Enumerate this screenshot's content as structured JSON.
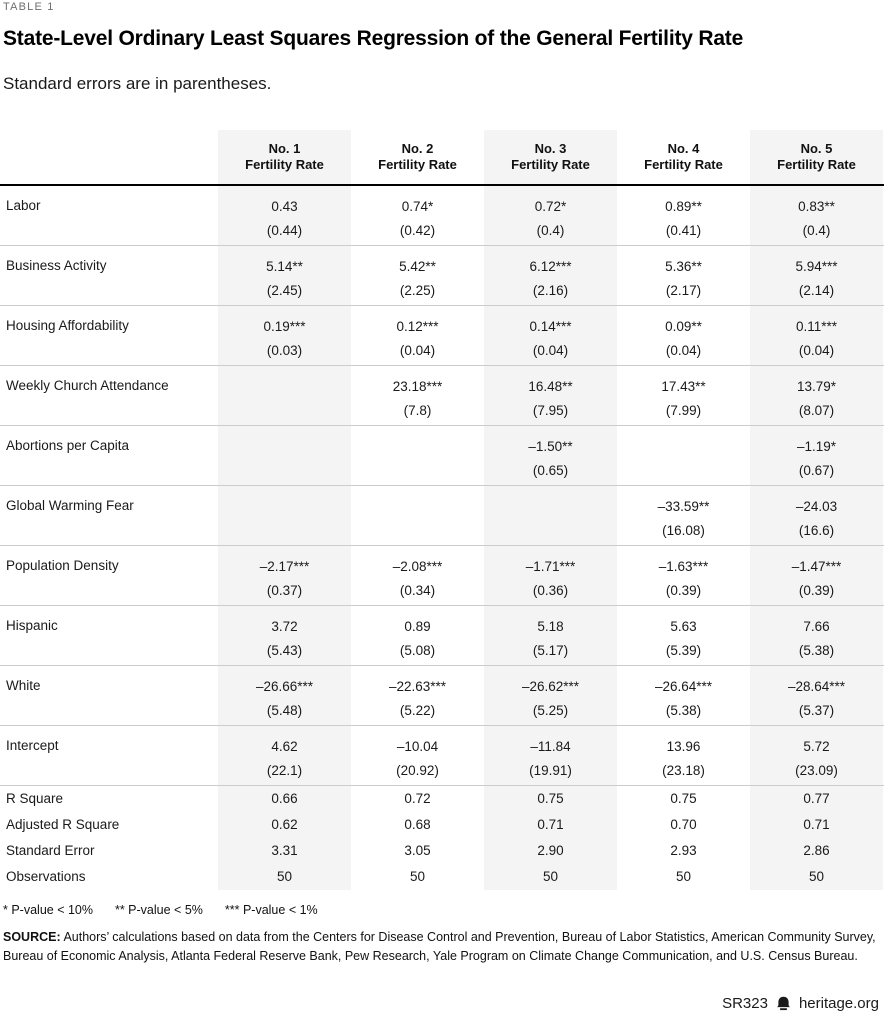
{
  "page": {
    "eyebrow": "TABLE 1",
    "title": "State-Level Ordinary Least Squares Regression of the General Fertility Rate",
    "subtitle": "Standard errors are in parentheses.",
    "footnote": {
      "sig1": "* P-value < 10%",
      "sig2": "** P-value < 5%",
      "sig3": "*** P-value < 1%"
    },
    "source_label": "SOURCE:",
    "source_text": " Authors’ calculations based on data from the Centers for Disease Control and Prevention, Bureau of Labor Statistics, American Community Survey, Bureau of Economic Analysis, Atlanta Federal Reserve Bank, Pew Research, Yale Program on Climate Change Communication, and U.S. Census Bureau.",
    "report_id": "SR323",
    "website": "heritage.org",
    "icons": {
      "bell": "heritage-bell-icon"
    },
    "colors": {
      "shaded_column": "#f4f4f4",
      "row_divider": "#cccccc",
      "header_rule": "#000000",
      "eyebrow_text": "#6e6e6e",
      "body_text": "#1a1a1a"
    }
  },
  "chart_data": {
    "type": "table",
    "title": "State-Level Ordinary Least Squares Regression of the General Fertility Rate",
    "subtitle": "Standard errors are in parentheses.",
    "shaded_column_indexes": [
      0,
      2,
      4
    ],
    "columns": [
      {
        "no": "No. 1",
        "label": "Fertility Rate"
      },
      {
        "no": "No. 2",
        "label": "Fertility Rate"
      },
      {
        "no": "No. 3",
        "label": "Fertility Rate"
      },
      {
        "no": "No. 4",
        "label": "Fertility Rate"
      },
      {
        "no": "No. 5",
        "label": "Fertility Rate"
      }
    ],
    "rows": [
      {
        "label": "Labor",
        "cells": [
          {
            "v": "0.43",
            "se": "(0.44)"
          },
          {
            "v": "0.74*",
            "se": "(0.42)"
          },
          {
            "v": "0.72*",
            "se": "(0.4)"
          },
          {
            "v": "0.89**",
            "se": "(0.41)"
          },
          {
            "v": "0.83**",
            "se": "(0.4)"
          }
        ]
      },
      {
        "label": "Business Activity",
        "cells": [
          {
            "v": "5.14**",
            "se": "(2.45)"
          },
          {
            "v": "5.42**",
            "se": "(2.25)"
          },
          {
            "v": "6.12***",
            "se": "(2.16)"
          },
          {
            "v": "5.36**",
            "se": "(2.17)"
          },
          {
            "v": "5.94***",
            "se": "(2.14)"
          }
        ]
      },
      {
        "label": "Housing Affordability",
        "cells": [
          {
            "v": "0.19***",
            "se": "(0.03)"
          },
          {
            "v": "0.12***",
            "se": "(0.04)"
          },
          {
            "v": "0.14***",
            "se": "(0.04)"
          },
          {
            "v": "0.09**",
            "se": "(0.04)"
          },
          {
            "v": "0.11***",
            "se": "(0.04)"
          }
        ]
      },
      {
        "label": "Weekly Church Attendance",
        "cells": [
          {},
          {
            "v": "23.18***",
            "se": "(7.8)"
          },
          {
            "v": "16.48**",
            "se": "(7.95)"
          },
          {
            "v": "17.43**",
            "se": "(7.99)"
          },
          {
            "v": "13.79*",
            "se": "(8.07)"
          }
        ]
      },
      {
        "label": "Abortions per Capita",
        "cells": [
          {},
          {},
          {
            "v": "–1.50**",
            "se": "(0.65)"
          },
          {},
          {
            "v": "–1.19*",
            "se": "(0.67)"
          }
        ]
      },
      {
        "label": "Global Warming Fear",
        "cells": [
          {},
          {},
          {},
          {
            "v": "–33.59**",
            "se": "(16.08)"
          },
          {
            "v": "–24.03",
            "se": "(16.6)"
          }
        ]
      },
      {
        "label": "Population Density",
        "cells": [
          {
            "v": "–2.17***",
            "se": "(0.37)"
          },
          {
            "v": "–2.08***",
            "se": "(0.34)"
          },
          {
            "v": "–1.71***",
            "se": "(0.36)"
          },
          {
            "v": "–1.63***",
            "se": "(0.39)"
          },
          {
            "v": "–1.47***",
            "se": "(0.39)"
          }
        ]
      },
      {
        "label": "Hispanic",
        "cells": [
          {
            "v": "3.72",
            "se": "(5.43)"
          },
          {
            "v": "0.89",
            "se": "(5.08)"
          },
          {
            "v": "5.18",
            "se": "(5.17)"
          },
          {
            "v": "5.63",
            "se": "(5.39)"
          },
          {
            "v": "7.66",
            "se": "(5.38)"
          }
        ]
      },
      {
        "label": "White",
        "cells": [
          {
            "v": "–26.66***",
            "se": "(5.48)"
          },
          {
            "v": "–22.63***",
            "se": "(5.22)"
          },
          {
            "v": "–26.62***",
            "se": "(5.25)"
          },
          {
            "v": "–26.64***",
            "se": "(5.38)"
          },
          {
            "v": "–28.64***",
            "se": "(5.37)"
          }
        ]
      },
      {
        "label": "Intercept",
        "cells": [
          {
            "v": "4.62",
            "se": "(22.1)"
          },
          {
            "v": "–10.04",
            "se": "(20.92)"
          },
          {
            "v": "–11.84",
            "se": "(19.91)"
          },
          {
            "v": "13.96",
            "se": "(23.18)"
          },
          {
            "v": "5.72",
            "se": "(23.09)"
          }
        ]
      }
    ],
    "stats": [
      {
        "label": "R Square",
        "values": [
          "0.66",
          "0.72",
          "0.75",
          "0.75",
          "0.77"
        ]
      },
      {
        "label": "Adjusted R Square",
        "values": [
          "0.62",
          "0.68",
          "0.71",
          "0.70",
          "0.71"
        ]
      },
      {
        "label": "Standard Error",
        "values": [
          "3.31",
          "3.05",
          "2.90",
          "2.93",
          "2.86"
        ]
      },
      {
        "label": "Observations",
        "values": [
          "50",
          "50",
          "50",
          "50",
          "50"
        ]
      }
    ]
  }
}
